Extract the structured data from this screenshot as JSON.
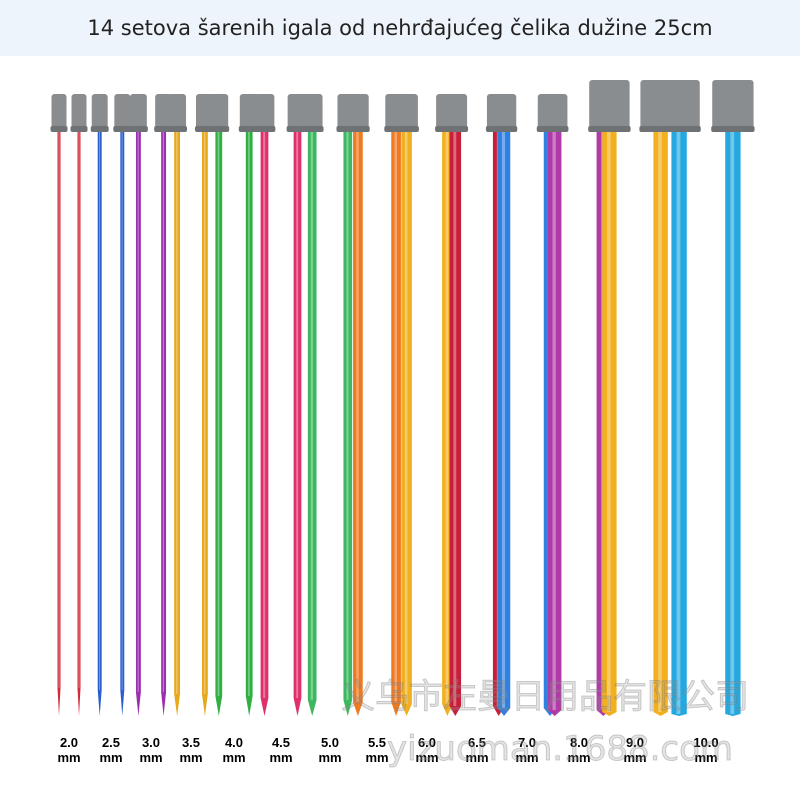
{
  "title": "14 setova šarenih igala od nehrđajućeg čelika dužine 25cm",
  "needle_sets": [
    {
      "size": "2.0",
      "unit": "mm",
      "color": "#d42a3a"
    },
    {
      "size": "2.5",
      "unit": "mm",
      "color": "#2a5fd0"
    },
    {
      "size": "3.0",
      "unit": "mm",
      "color": "#9a2fb0"
    },
    {
      "size": "3.5",
      "unit": "mm",
      "color": "#e8a81c"
    },
    {
      "size": "4.0",
      "unit": "mm",
      "color": "#2fb040"
    },
    {
      "size": "4.5",
      "unit": "mm",
      "color": "#e0306a"
    },
    {
      "size": "5.0",
      "unit": "mm",
      "color": "#3bb860"
    },
    {
      "size": "5.5",
      "unit": "mm",
      "color": "#f07a20"
    },
    {
      "size": "6.0",
      "unit": "mm",
      "color": "#f0b020"
    },
    {
      "size": "6.5",
      "unit": "mm",
      "color": "#c81e3a"
    },
    {
      "size": "7.0",
      "unit": "mm",
      "color": "#2f80e0"
    },
    {
      "size": "8.0",
      "unit": "mm",
      "color": "#b03aa8"
    },
    {
      "size": "9.0",
      "unit": "mm",
      "color": "#f2b01e"
    },
    {
      "size": "10.0",
      "unit": "mm",
      "color": "#25a8e0"
    }
  ],
  "watermark": [
    "义乌市左曼日用品有限公司",
    "yizuoman.1688.com"
  ]
}
